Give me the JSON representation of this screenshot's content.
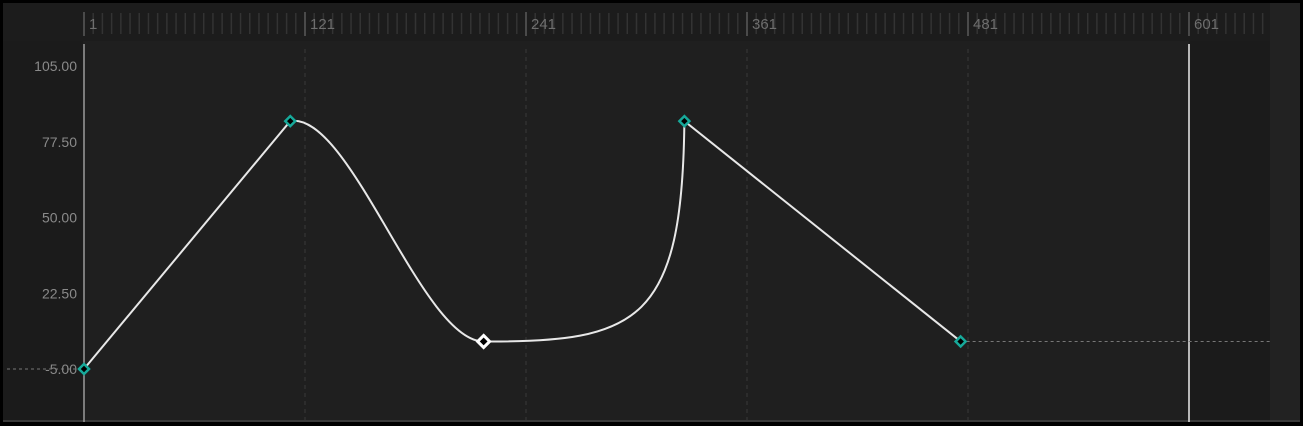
{
  "ruler": {
    "labels": [
      "1",
      "121",
      "241",
      "361",
      "481",
      "601"
    ],
    "frames": [
      1,
      121,
      241,
      361,
      481,
      601
    ]
  },
  "value_axis": {
    "labels": [
      "105.00",
      "77.50",
      "50.00",
      "22.50",
      "-5.00"
    ],
    "values": [
      105,
      77.5,
      50,
      22.5,
      -5
    ]
  },
  "playhead_frame": 601,
  "colors": {
    "background": "#1f1f1f",
    "curve": "#e8e8e8",
    "keyframe": "#17a99a",
    "keyframe_selected": "#ffffff"
  },
  "chart_data": {
    "type": "line",
    "xlim": [
      1,
      645
    ],
    "ylim": [
      -15,
      115
    ],
    "keyframes": [
      {
        "frame": 1,
        "value": -5,
        "interpolation": "linear",
        "selected": false
      },
      {
        "frame": 113,
        "value": 85,
        "interpolation": "bezier",
        "selected": false
      },
      {
        "frame": 218,
        "value": 5,
        "interpolation": "bezier",
        "selected": true
      },
      {
        "frame": 327,
        "value": 85,
        "interpolation": "linear",
        "selected": false
      },
      {
        "frame": 477,
        "value": 5,
        "interpolation": "constant",
        "selected": false
      }
    ],
    "extrapolation": "constant"
  }
}
